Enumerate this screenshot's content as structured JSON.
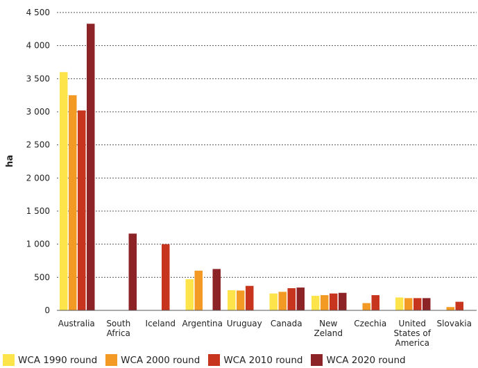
{
  "chart_data": {
    "type": "bar",
    "ylabel": "ha",
    "ylim": [
      0,
      4500
    ],
    "yticks": [
      0,
      500,
      1000,
      1500,
      2000,
      2500,
      3000,
      3500,
      4000,
      4500
    ],
    "ytick_labels": [
      "0",
      "500",
      "1 000",
      "1 500",
      "2 000",
      "2 500",
      "3 000",
      "3 500",
      "4 000",
      "4 500"
    ],
    "grid": true,
    "legend_position": "bottom",
    "categories": [
      [
        "Australia"
      ],
      [
        "South",
        "Africa"
      ],
      [
        "Iceland"
      ],
      [
        "Argentina"
      ],
      [
        "Uruguay"
      ],
      [
        "Canada"
      ],
      [
        "New",
        "Zeland"
      ],
      [
        "Czechia"
      ],
      [
        "United",
        "States of",
        "America"
      ],
      [
        "Slovakia"
      ]
    ],
    "series": [
      {
        "name": "WCA 1990 round",
        "color": "#FCE44A",
        "values": [
          3600,
          null,
          null,
          470,
          305,
          255,
          220,
          null,
          195,
          null
        ]
      },
      {
        "name": "WCA 2000 round",
        "color": "#F39A25",
        "values": [
          3250,
          null,
          null,
          600,
          300,
          280,
          230,
          110,
          185,
          50
        ]
      },
      {
        "name": "WCA 2010 round",
        "color": "#C8351F",
        "values": [
          3020,
          null,
          1000,
          null,
          370,
          335,
          255,
          230,
          185,
          130
        ]
      },
      {
        "name": "WCA 2020 round",
        "color": "#8C2427",
        "values": [
          4330,
          1160,
          null,
          625,
          null,
          345,
          265,
          null,
          185,
          null
        ]
      }
    ]
  }
}
